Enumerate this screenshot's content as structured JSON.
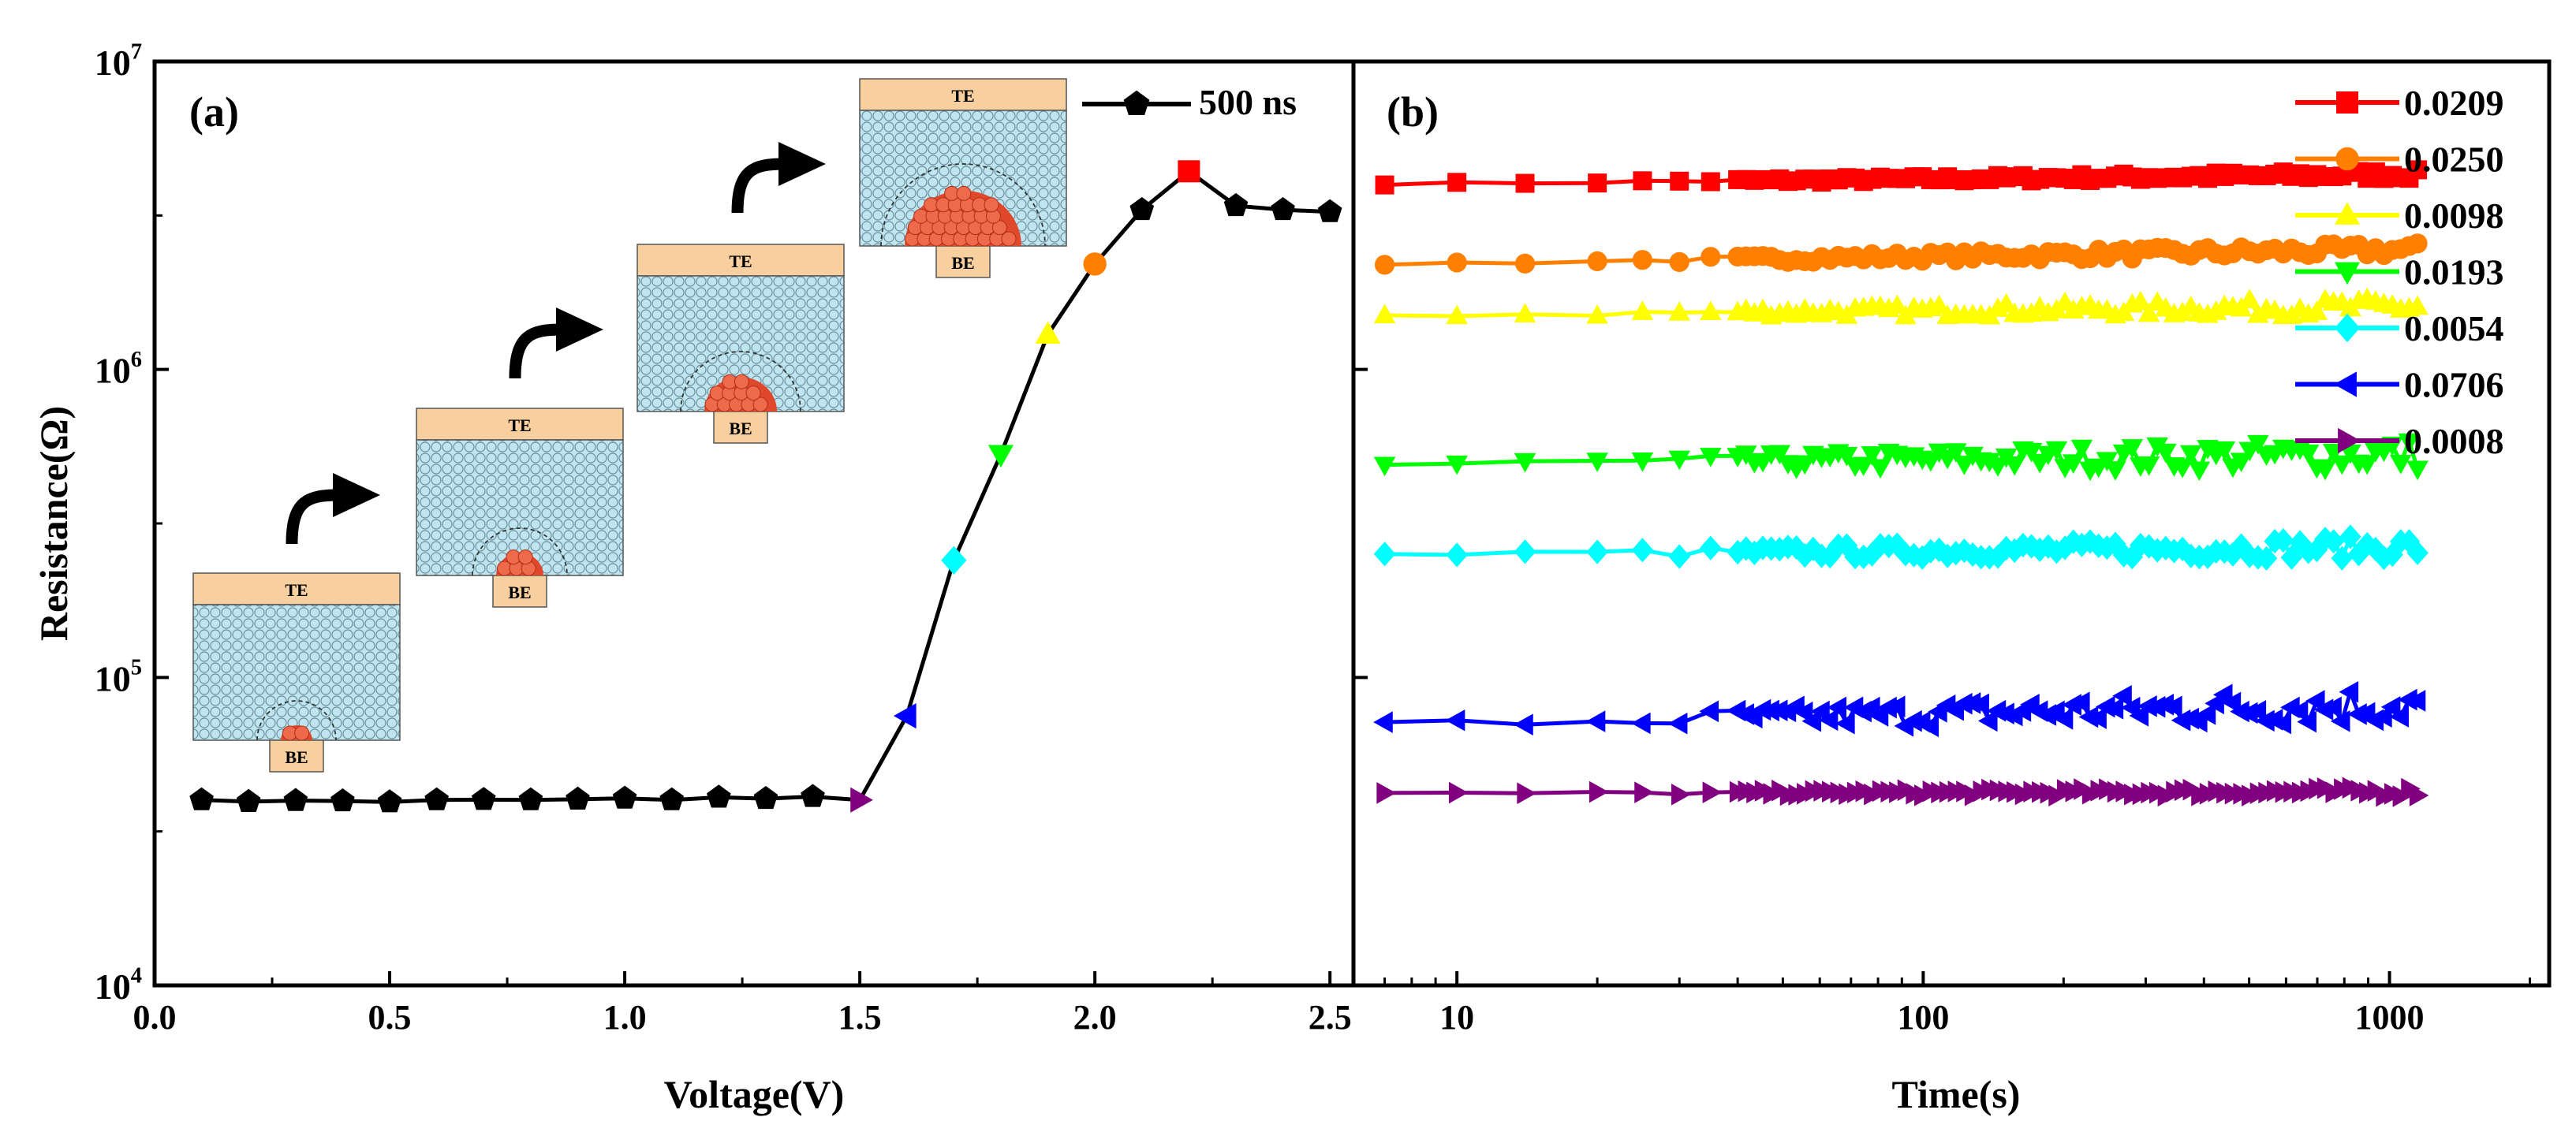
{
  "chart_data": [
    {
      "panel_label": "(a)",
      "type": "line",
      "xlabel": "Voltage(V)",
      "ylabel": "Resistance(Ω)",
      "xlim": [
        0.0,
        2.55
      ],
      "xticks": [
        "0.0",
        "0.5",
        "1.0",
        "1.5",
        "2.0",
        "2.5"
      ],
      "yscale": "log",
      "ylim": [
        10000,
        10000000
      ],
      "yticks": [
        {
          "base": "10",
          "exp": "4"
        },
        {
          "base": "10",
          "exp": "5"
        },
        {
          "base": "10",
          "exp": "6"
        },
        {
          "base": "10",
          "exp": "7"
        }
      ],
      "legend": {
        "label": "500 ns",
        "placement": "top-right"
      },
      "series": [
        {
          "name": "500 ns",
          "color": "#000000",
          "x": [
            0.1,
            0.2,
            0.3,
            0.4,
            0.5,
            0.6,
            0.7,
            0.8,
            0.9,
            1.0,
            1.1,
            1.2,
            1.3,
            1.4,
            1.5,
            1.6,
            1.7,
            1.8,
            1.9,
            2.0,
            2.1,
            2.2,
            2.3,
            2.4,
            2.5
          ],
          "y": [
            40000,
            39500,
            39800,
            39700,
            39400,
            40000,
            40100,
            40000,
            40200,
            40500,
            40000,
            40800,
            40400,
            41000,
            40000,
            75000,
            240000,
            530000,
            1300000,
            2200000,
            3300000,
            4400000,
            3400000,
            3300000,
            3250000
          ]
        }
      ],
      "highlighted_points": [
        {
          "x": 1.5,
          "y": 40000,
          "marker": "triangle-right",
          "color": "#800080"
        },
        {
          "x": 1.6,
          "y": 75000,
          "marker": "triangle-left",
          "color": "#0000ff"
        },
        {
          "x": 1.7,
          "y": 240000,
          "marker": "diamond",
          "color": "#00ffff"
        },
        {
          "x": 1.8,
          "y": 530000,
          "marker": "triangle-down",
          "color": "#00ff00"
        },
        {
          "x": 1.9,
          "y": 1300000,
          "marker": "triangle-up",
          "color": "#ffff00"
        },
        {
          "x": 2.0,
          "y": 2200000,
          "marker": "circle",
          "color": "#ff8000"
        },
        {
          "x": 2.2,
          "y": 4400000,
          "marker": "square",
          "color": "#ff0000"
        }
      ],
      "insets": [
        {
          "top_label": "TE",
          "bottom_label": "BE",
          "filament": "small"
        },
        {
          "top_label": "TE",
          "bottom_label": "BE",
          "filament": "medium"
        },
        {
          "top_label": "TE",
          "bottom_label": "BE",
          "filament": "large"
        },
        {
          "top_label": "TE",
          "bottom_label": "BE",
          "filament": "largest"
        }
      ]
    },
    {
      "panel_label": "(b)",
      "type": "line",
      "xlabel": "Time(s)",
      "xscale": "log",
      "xlim": [
        6,
        2200
      ],
      "xticks": [
        "10",
        "100",
        "1000"
      ],
      "yscale": "log",
      "ylim": [
        10000,
        10000000
      ],
      "legend": {
        "placement": "top-right"
      },
      "series": [
        {
          "name": "0.0209",
          "color": "#ff0000",
          "marker": "square",
          "y_start": 4000000,
          "y_end": 4300000,
          "noise": 0.02
        },
        {
          "name": "0.0250",
          "color": "#ff8000",
          "marker": "circle",
          "y_start": 2200000,
          "y_end": 2450000,
          "noise": 0.03
        },
        {
          "name": "0.0098",
          "color": "#ffff00",
          "marker": "triangle-up",
          "y_start": 1500000,
          "y_end": 1600000,
          "noise": 0.04
        },
        {
          "name": "0.0193",
          "color": "#00ff00",
          "marker": "triangle-down",
          "y_start": 490000,
          "y_end": 530000,
          "noise": 0.07
        },
        {
          "name": "0.0054",
          "color": "#00ffff",
          "marker": "diamond",
          "y_start": 250000,
          "y_end": 265000,
          "noise": 0.05
        },
        {
          "name": "0.0706",
          "color": "#0000ff",
          "marker": "triangle-left",
          "y_start": 70000,
          "y_end": 82000,
          "noise": 0.09
        },
        {
          "name": "0.0008",
          "color": "#800080",
          "marker": "triangle-right",
          "y_start": 42000,
          "y_end": 42500,
          "noise": 0.02
        }
      ]
    }
  ]
}
